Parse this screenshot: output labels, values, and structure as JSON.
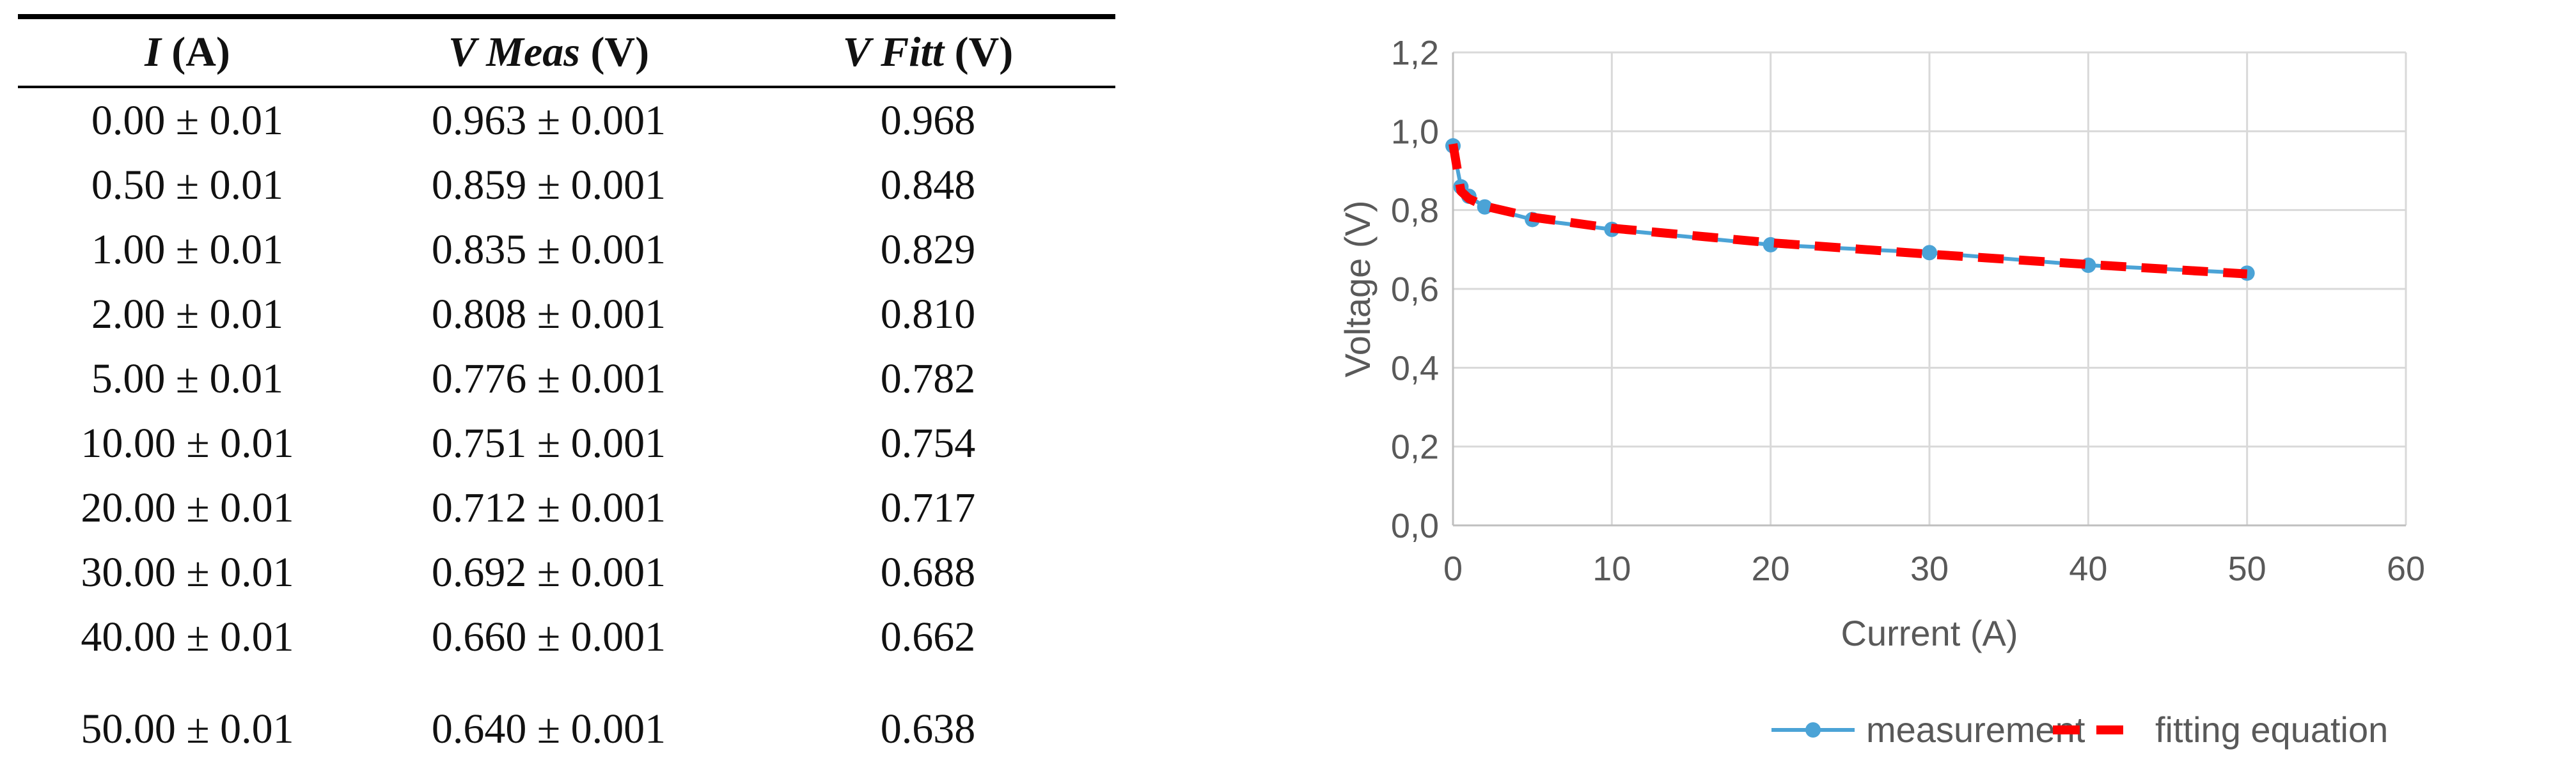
{
  "table": {
    "headers": [
      {
        "symbol": "I",
        "unit": " (A)"
      },
      {
        "symbol": "V Meas",
        "unit": " (V)"
      },
      {
        "symbol": "V Fitt",
        "unit": " (V)"
      }
    ],
    "rows": [
      [
        "0.00 ± 0.01",
        "0.963 ± 0.001",
        "0.968"
      ],
      [
        "0.50 ± 0.01",
        "0.859 ± 0.001",
        "0.848"
      ],
      [
        "1.00 ± 0.01",
        "0.835 ± 0.001",
        "0.829"
      ],
      [
        "2.00 ± 0.01",
        "0.808 ± 0.001",
        "0.810"
      ],
      [
        "5.00 ± 0.01",
        "0.776 ± 0.001",
        "0.782"
      ],
      [
        "10.00 ± 0.01",
        "0.751 ± 0.001",
        "0.754"
      ],
      [
        "20.00 ± 0.01",
        "0.712 ± 0.001",
        "0.717"
      ],
      [
        "30.00 ± 0.01",
        "0.692 ± 0.001",
        "0.688"
      ],
      [
        "40.00 ± 0.01",
        "0.660 ± 0.001",
        "0.662"
      ],
      [
        "50.00 ± 0.01",
        "0.640 ± 0.001",
        "0.638"
      ]
    ]
  },
  "chart_data": {
    "type": "line",
    "title": "",
    "xlabel": "Current (A)",
    "ylabel": "Voltage (V)",
    "xlim": [
      0,
      60
    ],
    "ylim": [
      0,
      1.2
    ],
    "x_ticks": [
      0,
      10,
      20,
      30,
      40,
      50,
      60
    ],
    "x_tick_labels": [
      "0",
      "10",
      "20",
      "30",
      "40",
      "50",
      "60"
    ],
    "y_ticks": [
      0,
      0.2,
      0.4,
      0.6,
      0.8,
      1.0,
      1.2
    ],
    "y_tick_labels": [
      "0,0",
      "0,2",
      "0,4",
      "0,6",
      "0,8",
      "1,0",
      "1,2"
    ],
    "grid": true,
    "legend_position": "bottom",
    "x": [
      0,
      0.5,
      1,
      2,
      5,
      10,
      20,
      30,
      40,
      50
    ],
    "series": [
      {
        "name": "measurement",
        "color": "#4BA3D6",
        "style": "solid",
        "marker": "circle",
        "values": [
          0.963,
          0.859,
          0.835,
          0.808,
          0.776,
          0.751,
          0.712,
          0.692,
          0.66,
          0.64
        ]
      },
      {
        "name": "fitting equation",
        "color": "#FF0000",
        "style": "dashed",
        "marker": "none",
        "values": [
          0.968,
          0.848,
          0.829,
          0.81,
          0.782,
          0.754,
          0.717,
          0.688,
          0.662,
          0.638
        ]
      }
    ]
  }
}
